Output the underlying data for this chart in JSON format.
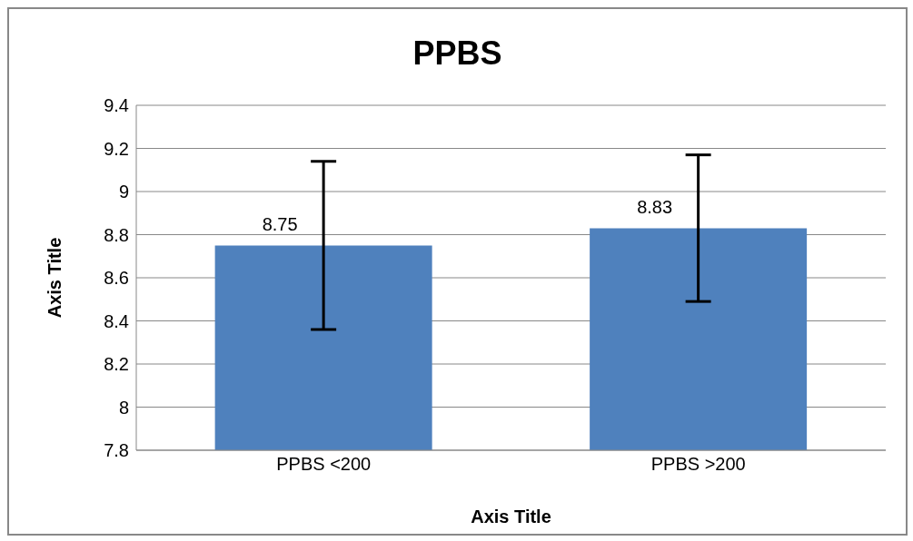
{
  "chart_data": {
    "type": "bar",
    "title": "PPBS",
    "xlabel": "Axis Title",
    "ylabel": "Axis Title",
    "categories": [
      "PPBS <200",
      "PPBS >200"
    ],
    "values": [
      8.75,
      8.83
    ],
    "errors": [
      0.39,
      0.34
    ],
    "color": "#4f81bd",
    "ylim": [
      7.8,
      9.4
    ],
    "yticks": [
      7.8,
      8,
      8.2,
      8.4,
      8.6,
      8.8,
      9,
      9.2,
      9.4
    ],
    "grid": "y",
    "data_labels": true,
    "legend": false
  }
}
